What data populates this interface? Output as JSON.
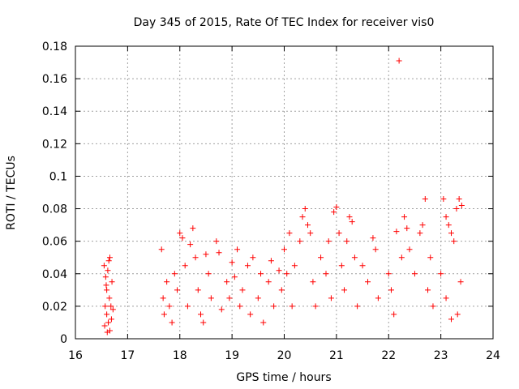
{
  "chart_data": {
    "type": "scatter",
    "title": "Day 345 of 2015, Rate Of TEC Index for receiver vis0",
    "xlabel": "GPS time / hours",
    "ylabel": "ROTI / TECUs",
    "xlim": [
      16,
      24
    ],
    "ylim": [
      0,
      0.18
    ],
    "xticks": [
      "16",
      "17",
      "18",
      "19",
      "20",
      "21",
      "22",
      "23",
      "24"
    ],
    "yticks": [
      "0",
      "0.02",
      "0.04",
      "0.06",
      "0.08",
      "0.1",
      "0.12",
      "0.14",
      "0.16",
      "0.18"
    ],
    "grid": true,
    "marker": "+",
    "color": "#ff0000",
    "series": [
      {
        "name": "vis0",
        "points": [
          [
            16.55,
            0.045
          ],
          [
            16.58,
            0.038
          ],
          [
            16.6,
            0.03
          ],
          [
            16.62,
            0.042
          ],
          [
            16.64,
            0.048
          ],
          [
            16.66,
            0.05
          ],
          [
            16.57,
            0.02
          ],
          [
            16.6,
            0.015
          ],
          [
            16.63,
            0.01
          ],
          [
            16.66,
            0.005
          ],
          [
            16.68,
            0.02
          ],
          [
            16.7,
            0.035
          ],
          [
            16.56,
            0.008
          ],
          [
            16.61,
            0.004
          ],
          [
            16.65,
            0.025
          ],
          [
            16.69,
            0.012
          ],
          [
            16.72,
            0.018
          ],
          [
            16.59,
            0.033
          ],
          [
            17.65,
            0.055
          ],
          [
            17.68,
            0.025
          ],
          [
            17.7,
            0.015
          ],
          [
            17.75,
            0.035
          ],
          [
            17.8,
            0.02
          ],
          [
            17.85,
            0.01
          ],
          [
            17.9,
            0.04
          ],
          [
            17.95,
            0.03
          ],
          [
            18.0,
            0.065
          ],
          [
            18.05,
            0.062
          ],
          [
            18.1,
            0.045
          ],
          [
            18.15,
            0.02
          ],
          [
            18.2,
            0.058
          ],
          [
            18.25,
            0.068
          ],
          [
            18.3,
            0.05
          ],
          [
            18.35,
            0.03
          ],
          [
            18.4,
            0.015
          ],
          [
            18.45,
            0.01
          ],
          [
            18.5,
            0.052
          ],
          [
            18.55,
            0.04
          ],
          [
            18.6,
            0.025
          ],
          [
            18.7,
            0.06
          ],
          [
            18.75,
            0.053
          ],
          [
            18.8,
            0.018
          ],
          [
            18.9,
            0.035
          ],
          [
            18.95,
            0.025
          ],
          [
            19.0,
            0.047
          ],
          [
            19.05,
            0.038
          ],
          [
            19.1,
            0.055
          ],
          [
            19.15,
            0.02
          ],
          [
            19.2,
            0.03
          ],
          [
            19.3,
            0.045
          ],
          [
            19.35,
            0.015
          ],
          [
            19.4,
            0.05
          ],
          [
            19.5,
            0.025
          ],
          [
            19.55,
            0.04
          ],
          [
            19.6,
            0.01
          ],
          [
            19.7,
            0.035
          ],
          [
            19.75,
            0.048
          ],
          [
            19.8,
            0.02
          ],
          [
            19.9,
            0.042
          ],
          [
            19.95,
            0.03
          ],
          [
            20.0,
            0.055
          ],
          [
            20.05,
            0.04
          ],
          [
            20.1,
            0.065
          ],
          [
            20.15,
            0.02
          ],
          [
            20.2,
            0.045
          ],
          [
            20.3,
            0.06
          ],
          [
            20.35,
            0.075
          ],
          [
            20.4,
            0.08
          ],
          [
            20.45,
            0.07
          ],
          [
            20.5,
            0.065
          ],
          [
            20.55,
            0.035
          ],
          [
            20.6,
            0.02
          ],
          [
            20.7,
            0.05
          ],
          [
            20.8,
            0.04
          ],
          [
            20.85,
            0.06
          ],
          [
            20.9,
            0.025
          ],
          [
            20.95,
            0.078
          ],
          [
            21.0,
            0.081
          ],
          [
            21.05,
            0.065
          ],
          [
            21.1,
            0.045
          ],
          [
            21.15,
            0.03
          ],
          [
            21.2,
            0.06
          ],
          [
            21.25,
            0.075
          ],
          [
            21.3,
            0.072
          ],
          [
            21.35,
            0.05
          ],
          [
            21.4,
            0.02
          ],
          [
            21.5,
            0.045
          ],
          [
            21.6,
            0.035
          ],
          [
            21.7,
            0.062
          ],
          [
            21.75,
            0.055
          ],
          [
            21.8,
            0.025
          ],
          [
            22.0,
            0.04
          ],
          [
            22.05,
            0.03
          ],
          [
            22.1,
            0.015
          ],
          [
            22.15,
            0.066
          ],
          [
            22.2,
            0.171
          ],
          [
            22.25,
            0.05
          ],
          [
            22.3,
            0.075
          ],
          [
            22.35,
            0.068
          ],
          [
            22.4,
            0.055
          ],
          [
            22.5,
            0.04
          ],
          [
            22.6,
            0.065
          ],
          [
            22.65,
            0.07
          ],
          [
            22.7,
            0.086
          ],
          [
            22.75,
            0.03
          ],
          [
            22.8,
            0.05
          ],
          [
            22.85,
            0.02
          ],
          [
            23.0,
            0.04
          ],
          [
            23.05,
            0.086
          ],
          [
            23.1,
            0.075
          ],
          [
            23.15,
            0.07
          ],
          [
            23.2,
            0.065
          ],
          [
            23.25,
            0.06
          ],
          [
            23.3,
            0.08
          ],
          [
            23.35,
            0.086
          ],
          [
            23.4,
            0.082
          ],
          [
            23.38,
            0.035
          ],
          [
            23.32,
            0.015
          ],
          [
            23.1,
            0.025
          ],
          [
            23.2,
            0.012
          ]
        ]
      }
    ]
  }
}
